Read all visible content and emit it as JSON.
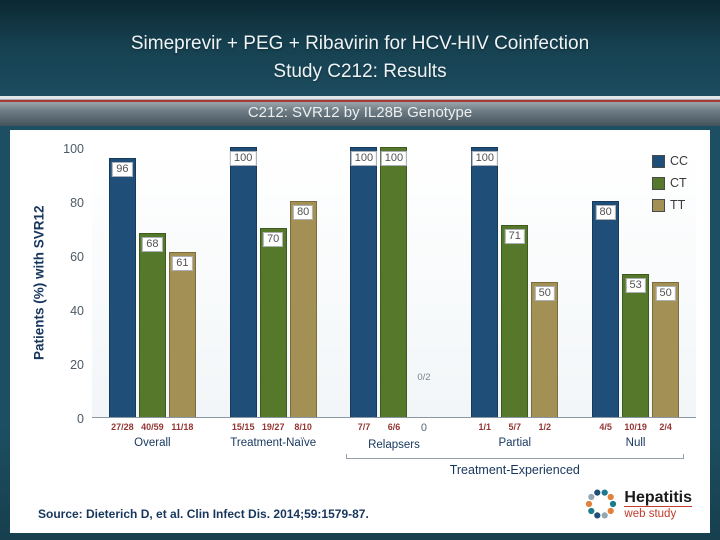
{
  "slide": {
    "title_line1": "Simeprevir + PEG + Ribavirin for HCV-HIV Coinfection",
    "title_line2": "Study C212: Results",
    "banner": "C212: SVR12 by IL28B Genotype",
    "source": "Source: Dieterich D, et al. Clin Infect Dis. 2014;59:1579-87.",
    "logo": {
      "title": "Hepatitis",
      "subtitle": "web study"
    }
  },
  "chart_data": {
    "type": "bar",
    "title": "C212: SVR12 by IL28B Genotype",
    "ylabel": "Patients (%) with SVR12",
    "xlabel": "",
    "ylim": [
      0,
      100
    ],
    "yticks": [
      0,
      20,
      40,
      60,
      80,
      100
    ],
    "grid": false,
    "legend": [
      "CC",
      "CT",
      "TT"
    ],
    "legend_position": "top-right",
    "series_colors": {
      "CC": "#1f4e79",
      "CT": "#55782a",
      "TT": "#a39054"
    },
    "groups": [
      {
        "label": "Overall",
        "bars": [
          {
            "series": "CC",
            "value": 96,
            "n": "27/28"
          },
          {
            "series": "CT",
            "value": 68,
            "n": "40/59"
          },
          {
            "series": "TT",
            "value": 61,
            "n": "11/18"
          }
        ]
      },
      {
        "label": "Treatment-Naïve",
        "bars": [
          {
            "series": "CC",
            "value": 100,
            "n": "15/15"
          },
          {
            "series": "CT",
            "value": 70,
            "n": "19/27"
          },
          {
            "series": "TT",
            "value": 80,
            "n": "8/10"
          }
        ]
      },
      {
        "label": "Relapsers",
        "bars": [
          {
            "series": "CC",
            "value": 100,
            "n": "7/7"
          },
          {
            "series": "CT",
            "value": 100,
            "n": "6/6"
          },
          {
            "series": "TT",
            "value": 0,
            "n": "0/2"
          }
        ]
      },
      {
        "label": "Partial",
        "bars": [
          {
            "series": "CC",
            "value": 100,
            "n": "1/1"
          },
          {
            "series": "CT",
            "value": 71,
            "n": "5/7"
          },
          {
            "series": "TT",
            "value": 50,
            "n": "1/2"
          }
        ]
      },
      {
        "label": "Null",
        "bars": [
          {
            "series": "CC",
            "value": 80,
            "n": "4/5"
          },
          {
            "series": "CT",
            "value": 53,
            "n": "10/19"
          },
          {
            "series": "TT",
            "value": 50,
            "n": "2/4"
          }
        ]
      }
    ],
    "bracket": {
      "label": "Treatment-Experienced",
      "from_group": 2,
      "to_group": 4
    }
  }
}
